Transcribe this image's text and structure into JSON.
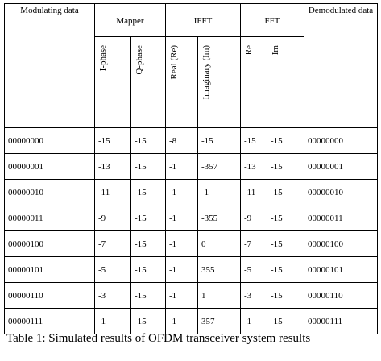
{
  "table": {
    "headers": [
      "Modulating data",
      "Mapper",
      "IFFT",
      "FFT",
      "Demodulated data"
    ],
    "subheaders": [
      "I-phase",
      "Q-phase",
      "Real (Re)",
      "Imaginary (Im)",
      "Re",
      "Im"
    ],
    "rows": [
      [
        "00000000",
        "-15",
        "-15",
        "-8",
        "-15",
        "-15",
        "-15",
        "00000000"
      ],
      [
        "00000001",
        "-13",
        "-15",
        "-1",
        "-357",
        "-13",
        "-15",
        "00000001"
      ],
      [
        "00000010",
        "-11",
        "-15",
        "-1",
        "-1",
        "-11",
        "-15",
        "00000010"
      ],
      [
        "00000011",
        "-9",
        "-15",
        "-1",
        "-355",
        "-9",
        "-15",
        "00000011"
      ],
      [
        "00000100",
        "-7",
        "-15",
        "-1",
        "0",
        "-7",
        "-15",
        "00000100"
      ],
      [
        "00000101",
        "-5",
        "-15",
        "-1",
        "355",
        "-5",
        "-15",
        "00000101"
      ],
      [
        "00000110",
        "-3",
        "-15",
        "-1",
        "1",
        "-3",
        "-15",
        "00000110"
      ],
      [
        "00000111",
        "-1",
        "-15",
        "-1",
        "357",
        "-1",
        "-15",
        "00000111"
      ]
    ]
  },
  "caption": "Table 1: Simulated results of OFDM transceiver system results"
}
